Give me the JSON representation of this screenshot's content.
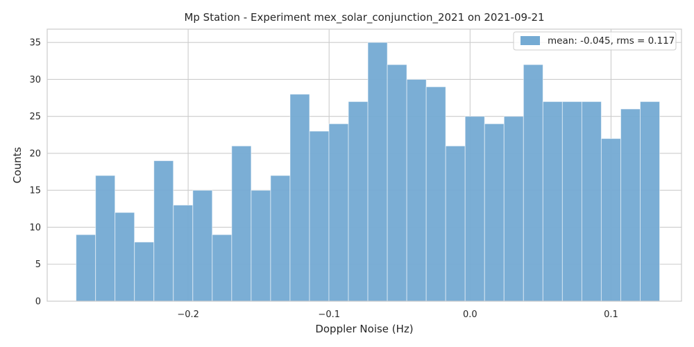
{
  "chart_data": {
    "type": "bar",
    "title": "Mp Station - Experiment mex_solar_conjunction_2021 on 2021-09-21",
    "xlabel": "Doppler Noise (Hz)",
    "ylabel": "Counts",
    "xlim": [
      -0.3,
      0.15
    ],
    "ylim": [
      0,
      36.8
    ],
    "x_ticks": [
      {
        "value": -0.2,
        "label": "−0.2"
      },
      {
        "value": -0.1,
        "label": "−0.1"
      },
      {
        "value": 0.0,
        "label": "0.0"
      },
      {
        "value": 0.1,
        "label": "0.1"
      }
    ],
    "y_ticks": [
      {
        "value": 0,
        "label": "0"
      },
      {
        "value": 5,
        "label": "5"
      },
      {
        "value": 10,
        "label": "10"
      },
      {
        "value": 15,
        "label": "15"
      },
      {
        "value": 20,
        "label": "20"
      },
      {
        "value": 25,
        "label": "25"
      },
      {
        "value": 30,
        "label": "30"
      },
      {
        "value": 35,
        "label": "35"
      }
    ],
    "bin_edges": [
      -0.2795,
      -0.2657,
      -0.2519,
      -0.2381,
      -0.2243,
      -0.2105,
      -0.1967,
      -0.1829,
      -0.1691,
      -0.1553,
      -0.1415,
      -0.1277,
      -0.1139,
      -0.1001,
      -0.0863,
      -0.0725,
      -0.0587,
      -0.0449,
      -0.0311,
      -0.0173,
      -0.0035,
      0.0103,
      0.0241,
      0.0379,
      0.0517,
      0.0655,
      0.0793,
      0.0931,
      0.1069,
      0.1207,
      0.1345
    ],
    "values": [
      9,
      17,
      12,
      8,
      19,
      13,
      15,
      9,
      21,
      15,
      17,
      28,
      23,
      24,
      27,
      35,
      32,
      30,
      29,
      21,
      25,
      24,
      25,
      32,
      27,
      27,
      27,
      22,
      26,
      27
    ],
    "series": [
      {
        "name": "mean: -0.045, rms = 0.117",
        "color": "#74aad3"
      }
    ],
    "grid": true,
    "legend_position": "upper right"
  }
}
